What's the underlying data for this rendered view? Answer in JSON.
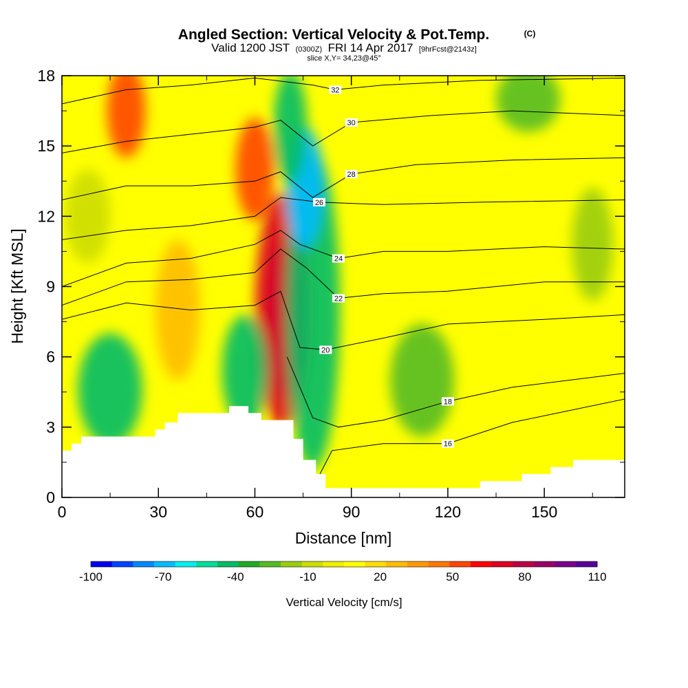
{
  "header": {
    "title": "Angled Section: Vertical Velocity & Pot.Temp.",
    "title_unit": "(C)",
    "valid_prefix": "Valid 1200 JST",
    "valid_zulu": "(0300Z)",
    "valid_date": "FRI 14 Apr 2017",
    "forecast": "[9hrFcst@2143z]",
    "slice": "slice X,Y= 34,23@45°"
  },
  "colorbar": {
    "label": "Vertical Velocity [cm/s]",
    "tick_labels": [
      "-100",
      "-70",
      "-40",
      "-10",
      "20",
      "50",
      "80",
      "110"
    ],
    "colors": [
      "#0000ee",
      "#0044ff",
      "#0088ff",
      "#00bbff",
      "#00eeee",
      "#00dd99",
      "#00bb66",
      "#22aa22",
      "#55bb22",
      "#99cc11",
      "#ccdd00",
      "#eeee00",
      "#ffff00",
      "#ffdd00",
      "#ffbb00",
      "#ff9900",
      "#ff7700",
      "#ff4400",
      "#ff0000",
      "#dd0022",
      "#bb0044",
      "#990066",
      "#770088",
      "#550099"
    ]
  },
  "chart_data": {
    "type": "heatmap",
    "title": "Angled Section: Vertical Velocity & Pot.Temp.",
    "xlabel": "Distance [nm]",
    "ylabel": "Height [Kft MSL]",
    "xlim": [
      0,
      175
    ],
    "ylim": [
      0,
      18
    ],
    "xticks": [
      0,
      30,
      60,
      90,
      120,
      150
    ],
    "yticks": [
      0,
      3,
      6,
      9,
      12,
      15,
      18
    ],
    "xtick_labels": [
      "0",
      "30",
      "60",
      "90",
      "120",
      "150"
    ],
    "ytick_labels": [
      "0",
      "3",
      "6",
      "9",
      "12",
      "15",
      "18"
    ],
    "field": "Vertical Velocity [cm/s]",
    "range": [
      -100,
      110
    ],
    "terrain": [
      [
        0,
        2
      ],
      [
        3,
        2
      ],
      [
        3,
        2.3
      ],
      [
        6,
        2.3
      ],
      [
        6,
        2.6
      ],
      [
        29,
        2.6
      ],
      [
        29,
        2.9
      ],
      [
        32,
        2.9
      ],
      [
        32,
        3.2
      ],
      [
        36,
        3.2
      ],
      [
        36,
        3.6
      ],
      [
        52,
        3.6
      ],
      [
        52,
        3.9
      ],
      [
        58,
        3.9
      ],
      [
        58,
        3.6
      ],
      [
        62,
        3.6
      ],
      [
        62,
        3.3
      ],
      [
        72,
        3.3
      ],
      [
        72,
        2.5
      ],
      [
        75,
        2.5
      ],
      [
        75,
        1.6
      ],
      [
        79,
        1.6
      ],
      [
        79,
        1
      ],
      [
        82,
        1
      ],
      [
        82,
        0.4
      ],
      [
        130,
        0.4
      ],
      [
        130,
        0.7
      ],
      [
        143,
        0.7
      ],
      [
        143,
        1
      ],
      [
        152,
        1
      ],
      [
        152,
        1.3
      ],
      [
        159,
        1.3
      ],
      [
        159,
        1.6
      ],
      [
        175,
        1.6
      ],
      [
        175,
        0
      ],
      [
        0,
        0
      ]
    ],
    "field_features": [
      {
        "x": 68.5,
        "y": 7.6,
        "value": 105,
        "rx": 2.2,
        "ry": 3.4
      },
      {
        "x": 68.5,
        "y": 8.0,
        "value": 70,
        "rx": 4.2,
        "ry": 5.0
      },
      {
        "x": 78,
        "y": 8.0,
        "value": -40,
        "rx": 4.2,
        "ry": 6.8
      },
      {
        "x": 75.5,
        "y": 13.2,
        "value": -70,
        "rx": 3.0,
        "ry": 2.6
      },
      {
        "x": 71,
        "y": 15.8,
        "value": -40,
        "rx": 2.6,
        "ry": 2.4
      },
      {
        "x": 20,
        "y": 16.5,
        "value": 50,
        "rx": 3.0,
        "ry": 2.0
      },
      {
        "x": 60,
        "y": 14.0,
        "value": 50,
        "rx": 3.0,
        "ry": 2.2
      },
      {
        "x": 57,
        "y": 5.4,
        "value": -40,
        "rx": 3.6,
        "ry": 2.4
      },
      {
        "x": 15,
        "y": 4.6,
        "value": -40,
        "rx": 5.0,
        "ry": 2.4
      },
      {
        "x": 112,
        "y": 5.0,
        "value": -25,
        "rx": 5.0,
        "ry": 2.4
      },
      {
        "x": 145,
        "y": 17.0,
        "value": -30,
        "rx": 5.0,
        "ry": 1.4
      },
      {
        "x": 165,
        "y": 10.8,
        "value": -20,
        "rx": 3.2,
        "ry": 2.4
      },
      {
        "x": 36,
        "y": 8.0,
        "value": 30,
        "rx": 3.5,
        "ry": 3.0
      },
      {
        "x": 8,
        "y": 12.0,
        "value": -10,
        "rx": 3.5,
        "ry": 2.0
      }
    ],
    "contours": [
      {
        "label": "16",
        "points": [
          [
            78,
            0.4
          ],
          [
            84,
            2.0
          ],
          [
            100,
            2.3
          ],
          [
            120,
            2.3
          ],
          [
            140,
            3.2
          ],
          [
            175,
            4.2
          ]
        ]
      },
      {
        "label": "18",
        "points": [
          [
            70,
            6.0
          ],
          [
            78,
            3.4
          ],
          [
            86,
            3.0
          ],
          [
            100,
            3.3
          ],
          [
            120,
            4.1
          ],
          [
            140,
            4.7
          ],
          [
            175,
            5.3
          ]
        ]
      },
      {
        "label": "20",
        "points": [
          [
            0,
            7.6
          ],
          [
            20,
            8.3
          ],
          [
            40,
            8.0
          ],
          [
            60,
            8.2
          ],
          [
            68,
            8.8
          ],
          [
            74,
            6.4
          ],
          [
            82,
            6.3
          ],
          [
            100,
            6.8
          ],
          [
            120,
            7.4
          ],
          [
            150,
            7.6
          ],
          [
            175,
            7.8
          ]
        ]
      },
      {
        "label": "22",
        "points": [
          [
            0,
            8.2
          ],
          [
            20,
            9.2
          ],
          [
            40,
            9.3
          ],
          [
            60,
            9.6
          ],
          [
            68,
            10.6
          ],
          [
            76,
            9.8
          ],
          [
            86,
            8.5
          ],
          [
            100,
            8.7
          ],
          [
            120,
            8.8
          ],
          [
            150,
            9.2
          ],
          [
            175,
            9.2
          ]
        ]
      },
      {
        "label": "24",
        "points": [
          [
            0,
            9.0
          ],
          [
            20,
            10.0
          ],
          [
            40,
            10.2
          ],
          [
            60,
            10.8
          ],
          [
            68,
            11.4
          ],
          [
            74,
            10.8
          ],
          [
            86,
            10.2
          ],
          [
            100,
            10.5
          ],
          [
            120,
            10.5
          ],
          [
            150,
            10.7
          ],
          [
            175,
            10.6
          ]
        ]
      },
      {
        "label": "26",
        "points": [
          [
            0,
            11.0
          ],
          [
            20,
            11.4
          ],
          [
            40,
            11.6
          ],
          [
            60,
            12.0
          ],
          [
            68,
            12.8
          ],
          [
            80,
            12.6
          ],
          [
            100,
            12.5
          ],
          [
            130,
            12.6
          ],
          [
            175,
            12.7
          ]
        ]
      },
      {
        "label": "28",
        "points": [
          [
            0,
            12.7
          ],
          [
            20,
            13.3
          ],
          [
            40,
            13.3
          ],
          [
            60,
            13.5
          ],
          [
            68,
            13.9
          ],
          [
            78,
            12.8
          ],
          [
            90,
            13.8
          ],
          [
            110,
            14.2
          ],
          [
            140,
            14.4
          ],
          [
            175,
            14.5
          ]
        ]
      },
      {
        "label": "30",
        "points": [
          [
            0,
            14.7
          ],
          [
            20,
            15.2
          ],
          [
            40,
            15.5
          ],
          [
            60,
            15.8
          ],
          [
            68,
            16.1
          ],
          [
            78,
            15.0
          ],
          [
            90,
            16.0
          ],
          [
            115,
            16.3
          ],
          [
            140,
            16.5
          ],
          [
            175,
            16.3
          ]
        ]
      },
      {
        "label": "32",
        "points": [
          [
            0,
            16.8
          ],
          [
            20,
            17.4
          ],
          [
            40,
            17.6
          ],
          [
            60,
            17.9
          ],
          [
            78,
            17.6
          ],
          [
            85,
            17.4
          ],
          [
            100,
            17.6
          ],
          [
            130,
            17.8
          ],
          [
            175,
            17.9
          ]
        ]
      }
    ]
  }
}
